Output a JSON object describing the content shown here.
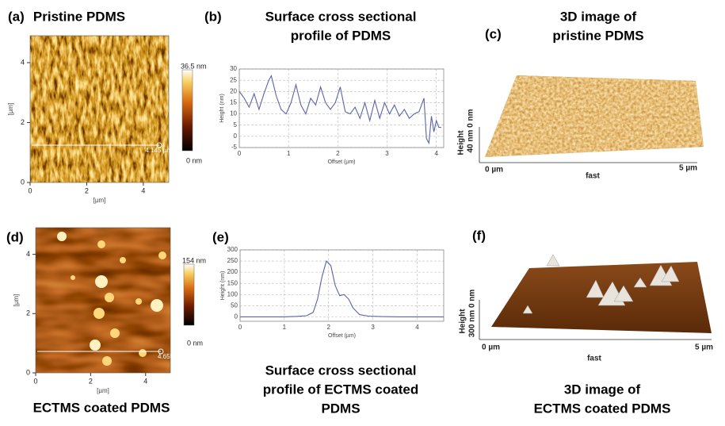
{
  "chart_data": [
    {
      "type": "line",
      "xlabel": "Offset (µm)",
      "ylabel": "Height (nm)",
      "color": "#5a64a8",
      "grid": true,
      "xlim": [
        0,
        4.15
      ],
      "ylim": [
        -5,
        30
      ],
      "xticks": [
        0,
        1,
        2,
        3,
        4
      ],
      "yticks": [
        -5,
        0,
        5,
        10,
        15,
        20,
        25,
        30
      ],
      "x": [
        0,
        0.1,
        0.2,
        0.3,
        0.4,
        0.5,
        0.6,
        0.65,
        0.75,
        0.85,
        0.95,
        1.05,
        1.15,
        1.25,
        1.35,
        1.45,
        1.55,
        1.65,
        1.75,
        1.85,
        1.95,
        2.05,
        2.15,
        2.25,
        2.35,
        2.45,
        2.55,
        2.65,
        2.75,
        2.85,
        2.95,
        3.05,
        3.15,
        3.25,
        3.35,
        3.45,
        3.55,
        3.65,
        3.75,
        3.8,
        3.85,
        3.9,
        3.95,
        4.0,
        4.05,
        4.1
      ],
      "values": [
        20,
        17,
        13,
        19,
        12,
        19,
        25,
        27,
        18,
        12,
        10,
        15,
        23,
        14,
        10,
        17,
        14,
        22,
        15,
        12,
        15,
        22,
        11,
        10,
        13,
        8,
        15,
        7,
        16,
        8,
        15,
        10,
        14,
        9,
        12,
        8,
        10,
        11,
        17,
        -1,
        -3,
        9,
        2,
        7,
        4,
        4
      ]
    },
    {
      "type": "line",
      "xlabel": "Offset (µm)",
      "ylabel": "Height (nm)",
      "color": "#5a64a8",
      "grid": true,
      "xlim": [
        0,
        4.6
      ],
      "ylim": [
        -20,
        300
      ],
      "xticks": [
        0,
        1,
        2,
        3,
        4
      ],
      "yticks": [
        0,
        50,
        100,
        150,
        200,
        250,
        300
      ],
      "x": [
        0,
        0.5,
        1.0,
        1.3,
        1.5,
        1.65,
        1.75,
        1.85,
        1.95,
        2.05,
        2.15,
        2.25,
        2.35,
        2.45,
        2.55,
        2.7,
        2.9,
        3.2,
        3.6,
        4.0,
        4.6
      ],
      "values": [
        0,
        0,
        0,
        2,
        5,
        20,
        80,
        180,
        250,
        230,
        140,
        95,
        100,
        80,
        40,
        10,
        3,
        1,
        0,
        0,
        0
      ]
    }
  ],
  "panels": {
    "a": {
      "label": "(a)",
      "title": [
        "Pristine PDMS"
      ],
      "image": {
        "xlim": [
          0,
          4.9
        ],
        "ylim": [
          0,
          4.9
        ],
        "xticks": [
          0,
          2,
          4
        ],
        "yticks": [
          0,
          2,
          4
        ],
        "xlabel": "[µm]",
        "ylabel": "[µm]",
        "line_label": "4.145 µm",
        "colorbar": [
          "36.5 nm",
          "0 nm"
        ]
      }
    },
    "b": {
      "label": "(b)",
      "title": [
        "Surface cross sectional",
        "profile of PDMS"
      ]
    },
    "c": {
      "label": "(c)",
      "title": [
        "3D image of",
        "pristine PDMS"
      ],
      "axis_labels": [
        "0 µm",
        "fast",
        "5 µm",
        "40 nm  0 nm",
        "Height"
      ]
    },
    "d": {
      "label": "(d)",
      "title": [
        "ECTMS coated PDMS"
      ],
      "image": {
        "xlim": [
          0,
          4.9
        ],
        "ylim": [
          0,
          4.9
        ],
        "xticks": [
          0,
          2,
          4
        ],
        "yticks": [
          0,
          2,
          4
        ],
        "xlabel": "[µm]",
        "ylabel": "[µm]",
        "line_label": "4.655",
        "colorbar": [
          "154 nm",
          "0 nm"
        ]
      }
    },
    "e": {
      "label": "(e)",
      "title": [
        "Surface cross sectional",
        "profile of ECTMS coated",
        "PDMS"
      ]
    },
    "f": {
      "label": "(f)",
      "title": [
        "3D image of",
        "ECTMS coated PDMS"
      ],
      "axis_labels": [
        "0 µm",
        "fast",
        "5 µm",
        "300 nm  0 nm",
        "Height"
      ]
    }
  }
}
